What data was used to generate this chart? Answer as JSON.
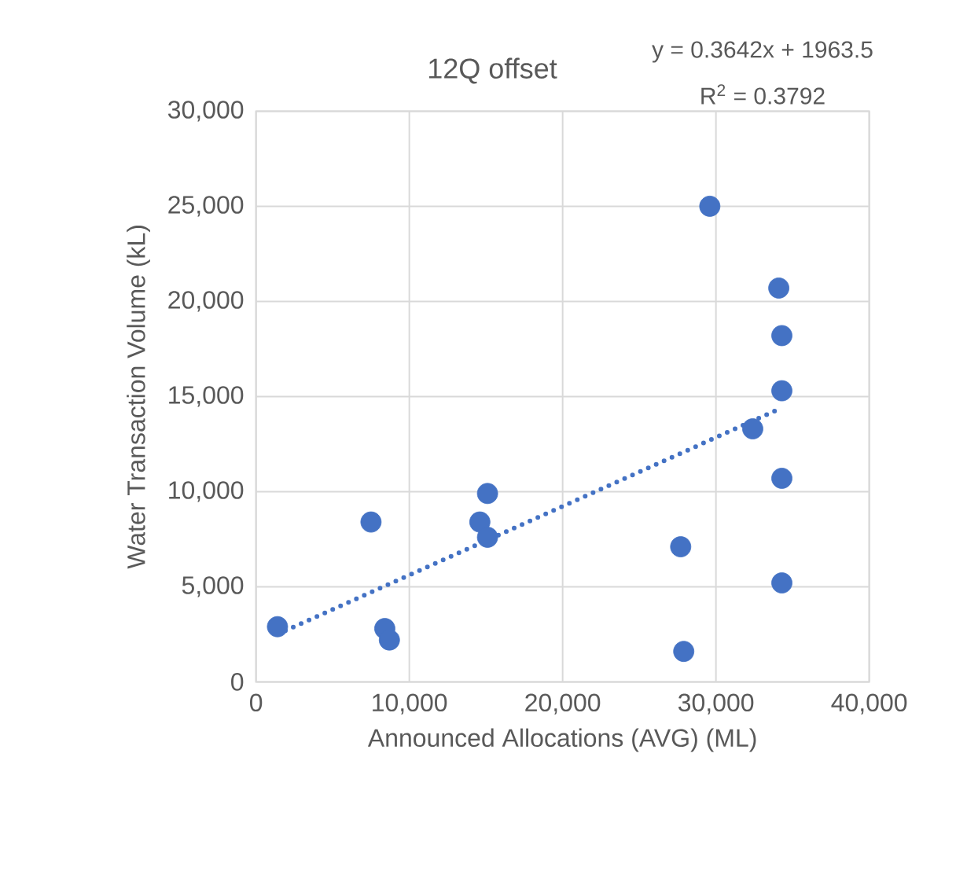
{
  "chart_data": {
    "type": "scatter",
    "title": "12Q offset",
    "xlabel": "Announced Allocations (AVG) (ML)",
    "ylabel": "Water Transaction Volume (kL)",
    "annotations": [
      "y = 0.3642x + 1963.5",
      "R$^{2}$ = 0.3792"
    ],
    "xlim": [
      0,
      40000
    ],
    "ylim": [
      0,
      30000
    ],
    "xticks": [
      0,
      {
        "value": 10000,
        "label": "10,000"
      },
      {
        "value": 20000,
        "label": "20,000"
      },
      {
        "value": 30000,
        "label": "30,000"
      },
      {
        "value": 40000,
        "label": "40,000"
      }
    ],
    "yticks": [
      0,
      {
        "value": 5000,
        "label": "5,000"
      },
      {
        "value": 10000,
        "label": "10,000"
      },
      {
        "value": 15000,
        "label": "15,000"
      },
      {
        "value": 20000,
        "label": "20,000"
      },
      {
        "value": 25000,
        "label": "25,000"
      },
      {
        "value": 30000,
        "label": "30,000"
      }
    ],
    "grid": true,
    "marker": "circle",
    "series": [
      {
        "color": "#4472c4",
        "x": [
          1400,
          7500,
          8400,
          8700,
          14600,
          15100,
          15100,
          27700,
          27900,
          29600,
          32400,
          34100,
          34300,
          34300,
          34300,
          34300
        ],
        "values": [
          2900,
          8400,
          2800,
          2200,
          8400,
          9900,
          7600,
          7100,
          1600,
          25000,
          13300,
          20700,
          18200,
          15300,
          10700,
          5200
        ]
      },
      {
        "type": "line",
        "color": "#4472c4",
        "line_style": "dotted",
        "marker": "none",
        "x": [
          1400,
          34300
        ],
        "values": [
          2500,
          14400
        ]
      }
    ]
  }
}
